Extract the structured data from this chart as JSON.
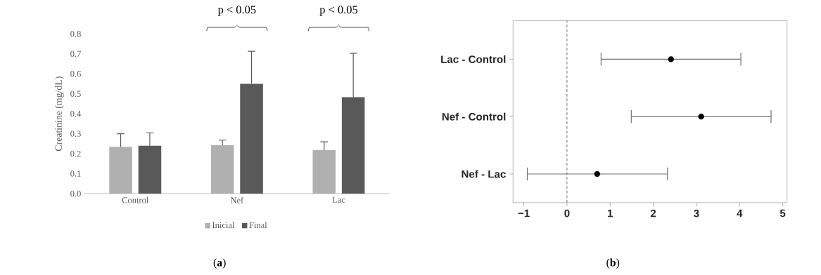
{
  "chart_data": [
    {
      "type": "bar",
      "categories": [
        "Control",
        "Nef",
        "Lac"
      ],
      "series": [
        {
          "name": "Inicial",
          "color": "#b0b0b0",
          "values": [
            0.235,
            0.243,
            0.218
          ],
          "errors": [
            [
              0.235,
              0.3
            ],
            [
              0.243,
              0.268
            ],
            [
              0.218,
              0.26
            ]
          ]
        },
        {
          "name": "Final",
          "color": "#595959",
          "values": [
            0.24,
            0.55,
            0.483
          ],
          "errors": [
            [
              0.24,
              0.305
            ],
            [
              0.55,
              0.713
            ],
            [
              0.483,
              0.703
            ]
          ]
        }
      ],
      "ylabel": "Creatinine (mg/dL)",
      "ylim": [
        0,
        0.8
      ],
      "yticks": [
        {
          "value": 0,
          "label": "0.0"
        },
        0.1,
        0.2,
        0.3,
        0.4,
        0.5,
        0.6,
        0.7,
        0.8
      ],
      "legend": "bottom",
      "annotations": [
        "p < 0.05",
        "p < 0.05",
        "(**a**)"
      ]
    },
    {
      "type": "scatter",
      "orientation": "horizontal",
      "categories": [
        "Lac - Control",
        "Nef - Control",
        "Nef - Lac"
      ],
      "values": [
        2.41,
        3.11,
        0.7
      ],
      "errors": [
        [
          0.79,
          4.03
        ],
        [
          1.49,
          4.73
        ],
        [
          -0.92,
          2.33
        ]
      ],
      "color": "#000000",
      "xlim": [
        -1.25,
        5.1
      ],
      "xticks": [
        {
          "value": -1,
          "label": "−1"
        },
        0,
        1,
        2,
        3,
        4,
        5
      ],
      "ref_lines": [
        {
          "axis": "x",
          "value": 0,
          "line_style": "dashed"
        }
      ],
      "annotations": [
        "(**b**)"
      ]
    }
  ]
}
